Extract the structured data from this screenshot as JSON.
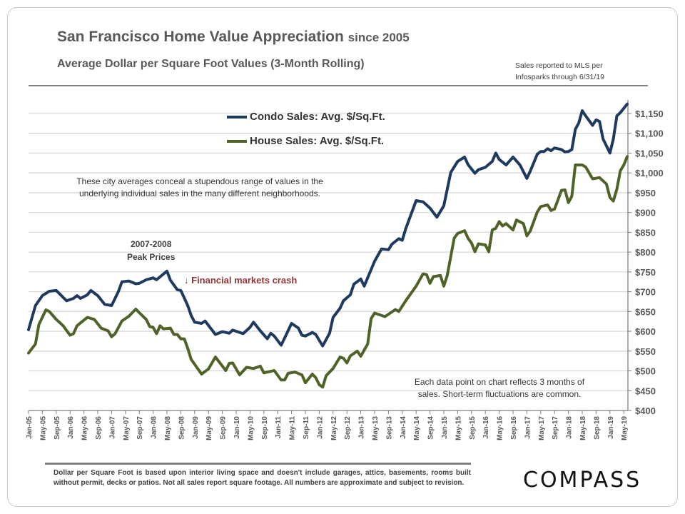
{
  "header": {
    "title": "San Francisco Home Value Appreciation",
    "title_suffix": "since 2005",
    "subtitle": "Average Dollar  per Square  Foot Values (3-Month  Rolling)",
    "source_line1": "Sales reported to MLS per",
    "source_line2": "Infosparks through 6/31/19"
  },
  "annotations": {
    "neighborhoods_line1": "These city averages conceal a stupendous range of values in the",
    "neighborhoods_line2": "underlying individual sales in the many different neighborhoods.",
    "peak_line1": "2007-2008",
    "peak_line2": "Peak Prices",
    "crash": "Financial markets crash",
    "crash_icon": "arrow-down-icon",
    "fluct_line1": "Each data point on chart reflects 3 months of",
    "fluct_line2": "sales. Short-term fluctuations are common."
  },
  "footer": {
    "disclaimer": "Dollar per Square Foot is based upon interior living space and doesn't include garages, attics, basements, rooms built without permit, decks or patios. Not all sales report square footage. All numbers are approximate and subject to revision.",
    "logo": "COMPASS"
  },
  "colors": {
    "condo": "#1f3a5f",
    "house": "#4f6228",
    "crash": "#943634",
    "grid": "#d9d9d9",
    "axis": "#7f7f7f"
  },
  "chart_data": {
    "type": "line",
    "title": "San Francisco Home Value Appreciation since 2005",
    "subtitle": "Average Dollar  per Square  Foot Values (3-Month  Rolling)",
    "y_axis_side": "right",
    "ylim": [
      400,
      1175
    ],
    "y_ticks": [
      "$400",
      "$450",
      "$500",
      "$550",
      "$600",
      "$650",
      "$700",
      "$750",
      "$800",
      "$850",
      "$900",
      "$950",
      "$1,000",
      "$1,050",
      "$1,100",
      "$1,150"
    ],
    "y_tick_values": [
      400,
      450,
      500,
      550,
      600,
      650,
      700,
      750,
      800,
      850,
      900,
      950,
      1000,
      1050,
      1100,
      1150
    ],
    "x_ticks": [
      "Jan-05",
      "May-05",
      "Sep-05",
      "Jan-06",
      "May-06",
      "Sep-06",
      "Jan-07",
      "May-07",
      "Sep-07",
      "Jan-08",
      "May-08",
      "Sep-08",
      "Jan-09",
      "May-09",
      "Sep-09",
      "Jan-10",
      "May-10",
      "Sep-10",
      "Jan-11",
      "May-11",
      "Sep-11",
      "Jan-12",
      "May-12",
      "Sep-12",
      "Jan-13",
      "May-13",
      "Sep-13",
      "Jan-14",
      "May-14",
      "Sep-14",
      "Jan-15",
      "May-15",
      "Sep-15",
      "Jan-16",
      "May-16",
      "Sep-16",
      "Jan-17",
      "May-17",
      "Sep-17",
      "Jan-18",
      "May-18",
      "Sep-18",
      "Jan-19",
      "May-19"
    ],
    "grid": "horizontal",
    "legend_placement": "top-center",
    "series": [
      {
        "name": "Condo Sales: Avg. $/Sq.Ft.",
        "color": "#1f3a5f",
        "points": [
          [
            "2005-01",
            604
          ],
          [
            "2005-03",
            665
          ],
          [
            "2005-05",
            690
          ],
          [
            "2005-07",
            701
          ],
          [
            "2005-09",
            703
          ],
          [
            "2005-12",
            677
          ],
          [
            "2006-02",
            683
          ],
          [
            "2006-03",
            690
          ],
          [
            "2006-04",
            683
          ],
          [
            "2006-06",
            692
          ],
          [
            "2006-07",
            703
          ],
          [
            "2006-09",
            690
          ],
          [
            "2006-11",
            668
          ],
          [
            "2007-01",
            665
          ],
          [
            "2007-03",
            701
          ],
          [
            "2007-04",
            725
          ],
          [
            "2007-06",
            727
          ],
          [
            "2007-08",
            720
          ],
          [
            "2007-09",
            721
          ],
          [
            "2007-11",
            730
          ],
          [
            "2008-01",
            735
          ],
          [
            "2008-02",
            730
          ],
          [
            "2008-05",
            752
          ],
          [
            "2008-06",
            729
          ],
          [
            "2008-08",
            705
          ],
          [
            "2008-09",
            703
          ],
          [
            "2008-11",
            665
          ],
          [
            "2008-12",
            640
          ],
          [
            "2009-01",
            623
          ],
          [
            "2009-03",
            620
          ],
          [
            "2009-04",
            626
          ],
          [
            "2009-07",
            592
          ],
          [
            "2009-09",
            599
          ],
          [
            "2009-11",
            595
          ],
          [
            "2009-12",
            603
          ],
          [
            "2010-03",
            594
          ],
          [
            "2010-05",
            610
          ],
          [
            "2010-06",
            623
          ],
          [
            "2010-08",
            601
          ],
          [
            "2010-10",
            581
          ],
          [
            "2010-11",
            595
          ],
          [
            "2010-12",
            588
          ],
          [
            "2011-02",
            565
          ],
          [
            "2011-03",
            583
          ],
          [
            "2011-05",
            620
          ],
          [
            "2011-07",
            608
          ],
          [
            "2011-08",
            590
          ],
          [
            "2011-09",
            588
          ],
          [
            "2011-11",
            597
          ],
          [
            "2011-12",
            592
          ],
          [
            "2012-02",
            563
          ],
          [
            "2012-04",
            595
          ],
          [
            "2012-05",
            635
          ],
          [
            "2012-07",
            658
          ],
          [
            "2012-08",
            677
          ],
          [
            "2012-10",
            692
          ],
          [
            "2012-11",
            719
          ],
          [
            "2013-01",
            732
          ],
          [
            "2013-02",
            714
          ],
          [
            "2013-05",
            777
          ],
          [
            "2013-07",
            808
          ],
          [
            "2013-09",
            806
          ],
          [
            "2013-10",
            820
          ],
          [
            "2013-12",
            834
          ],
          [
            "2014-01",
            830
          ],
          [
            "2014-02",
            859
          ],
          [
            "2014-05",
            930
          ],
          [
            "2014-07",
            927
          ],
          [
            "2014-09",
            911
          ],
          [
            "2014-11",
            888
          ],
          [
            "2015-01",
            917
          ],
          [
            "2015-03",
            1001
          ],
          [
            "2015-05",
            1029
          ],
          [
            "2015-07",
            1040
          ],
          [
            "2015-08",
            1021
          ],
          [
            "2015-10",
            999
          ],
          [
            "2015-11",
            1008
          ],
          [
            "2016-01",
            1014
          ],
          [
            "2016-03",
            1029
          ],
          [
            "2016-04",
            1050
          ],
          [
            "2016-05",
            1034
          ],
          [
            "2016-07",
            1020
          ],
          [
            "2016-09",
            1040
          ],
          [
            "2016-11",
            1020
          ],
          [
            "2017-01",
            986
          ],
          [
            "2017-02",
            1005
          ],
          [
            "2017-04",
            1047
          ],
          [
            "2017-05",
            1054
          ],
          [
            "2017-06",
            1054
          ],
          [
            "2017-07",
            1061
          ],
          [
            "2017-08",
            1056
          ],
          [
            "2017-09",
            1063
          ],
          [
            "2017-11",
            1059
          ],
          [
            "2017-12",
            1053
          ],
          [
            "2018-01",
            1054
          ],
          [
            "2018-02",
            1059
          ],
          [
            "2018-03",
            1110
          ],
          [
            "2018-04",
            1126
          ],
          [
            "2018-05",
            1157
          ],
          [
            "2018-06",
            1144
          ],
          [
            "2018-08",
            1120
          ],
          [
            "2018-09",
            1134
          ],
          [
            "2018-10",
            1130
          ],
          [
            "2018-11",
            1086
          ],
          [
            "2019-01",
            1050
          ],
          [
            "2019-02",
            1086
          ],
          [
            "2019-03",
            1144
          ],
          [
            "2019-04",
            1152
          ],
          [
            "2019-06",
            1174
          ]
        ]
      },
      {
        "name": "House Sales: Avg. $/Sq.Ft.",
        "color": "#4f6228",
        "points": [
          [
            "2005-01",
            545
          ],
          [
            "2005-03",
            568
          ],
          [
            "2005-04",
            617
          ],
          [
            "2005-06",
            654
          ],
          [
            "2005-07",
            650
          ],
          [
            "2005-09",
            630
          ],
          [
            "2005-11",
            614
          ],
          [
            "2006-01",
            590
          ],
          [
            "2006-02",
            594
          ],
          [
            "2006-03",
            614
          ],
          [
            "2006-06",
            635
          ],
          [
            "2006-08",
            630
          ],
          [
            "2006-10",
            608
          ],
          [
            "2006-12",
            601
          ],
          [
            "2007-01",
            586
          ],
          [
            "2007-02",
            594
          ],
          [
            "2007-04",
            626
          ],
          [
            "2007-06",
            638
          ],
          [
            "2007-08",
            656
          ],
          [
            "2007-09",
            647
          ],
          [
            "2007-11",
            630
          ],
          [
            "2007-12",
            612
          ],
          [
            "2008-01",
            610
          ],
          [
            "2008-02",
            594
          ],
          [
            "2008-03",
            614
          ],
          [
            "2008-04",
            606
          ],
          [
            "2008-06",
            608
          ],
          [
            "2008-07",
            592
          ],
          [
            "2008-08",
            592
          ],
          [
            "2008-09",
            581
          ],
          [
            "2008-10",
            581
          ],
          [
            "2008-11",
            557
          ],
          [
            "2008-12",
            529
          ],
          [
            "2009-03",
            492
          ],
          [
            "2009-05",
            505
          ],
          [
            "2009-07",
            535
          ],
          [
            "2009-10",
            501
          ],
          [
            "2009-11",
            519
          ],
          [
            "2009-12",
            520
          ],
          [
            "2010-02",
            490
          ],
          [
            "2010-04",
            509
          ],
          [
            "2010-06",
            506
          ],
          [
            "2010-08",
            512
          ],
          [
            "2010-09",
            495
          ],
          [
            "2010-12",
            501
          ],
          [
            "2011-02",
            477
          ],
          [
            "2011-03",
            477
          ],
          [
            "2011-04",
            494
          ],
          [
            "2011-06",
            497
          ],
          [
            "2011-08",
            490
          ],
          [
            "2011-09",
            470
          ],
          [
            "2011-11",
            492
          ],
          [
            "2011-12",
            483
          ],
          [
            "2012-01",
            465
          ],
          [
            "2012-02",
            459
          ],
          [
            "2012-03",
            488
          ],
          [
            "2012-05",
            506
          ],
          [
            "2012-07",
            535
          ],
          [
            "2012-08",
            532
          ],
          [
            "2012-09",
            520
          ],
          [
            "2012-10",
            538
          ],
          [
            "2012-12",
            550
          ],
          [
            "2013-01",
            537
          ],
          [
            "2013-03",
            568
          ],
          [
            "2013-04",
            632
          ],
          [
            "2013-05",
            646
          ],
          [
            "2013-08",
            637
          ],
          [
            "2013-11",
            655
          ],
          [
            "2013-12",
            650
          ],
          [
            "2014-02",
            677
          ],
          [
            "2014-05",
            714
          ],
          [
            "2014-07",
            745
          ],
          [
            "2014-08",
            743
          ],
          [
            "2014-09",
            721
          ],
          [
            "2014-10",
            738
          ],
          [
            "2014-12",
            741
          ],
          [
            "2015-01",
            714
          ],
          [
            "2015-02",
            741
          ],
          [
            "2015-04",
            835
          ],
          [
            "2015-05",
            847
          ],
          [
            "2015-07",
            854
          ],
          [
            "2015-08",
            835
          ],
          [
            "2015-09",
            823
          ],
          [
            "2015-10",
            801
          ],
          [
            "2015-11",
            821
          ],
          [
            "2016-01",
            818
          ],
          [
            "2016-02",
            801
          ],
          [
            "2016-03",
            856
          ],
          [
            "2016-04",
            860
          ],
          [
            "2016-05",
            877
          ],
          [
            "2016-06",
            866
          ],
          [
            "2016-07",
            872
          ],
          [
            "2016-09",
            856
          ],
          [
            "2016-10",
            881
          ],
          [
            "2016-12",
            872
          ],
          [
            "2017-01",
            841
          ],
          [
            "2017-02",
            854
          ],
          [
            "2017-04",
            901
          ],
          [
            "2017-05",
            915
          ],
          [
            "2017-07",
            919
          ],
          [
            "2017-08",
            905
          ],
          [
            "2017-09",
            909
          ],
          [
            "2017-10",
            932
          ],
          [
            "2017-11",
            956
          ],
          [
            "2017-12",
            957
          ],
          [
            "2018-01",
            925
          ],
          [
            "2018-02",
            941
          ],
          [
            "2018-03",
            1020
          ],
          [
            "2018-05",
            1020
          ],
          [
            "2018-06",
            1015
          ],
          [
            "2018-08",
            985
          ],
          [
            "2018-10",
            988
          ],
          [
            "2018-12",
            972
          ],
          [
            "2019-01",
            938
          ],
          [
            "2019-02",
            929
          ],
          [
            "2019-03",
            959
          ],
          [
            "2019-04",
            1005
          ],
          [
            "2019-05",
            1020
          ],
          [
            "2019-06",
            1041
          ]
        ]
      }
    ]
  }
}
